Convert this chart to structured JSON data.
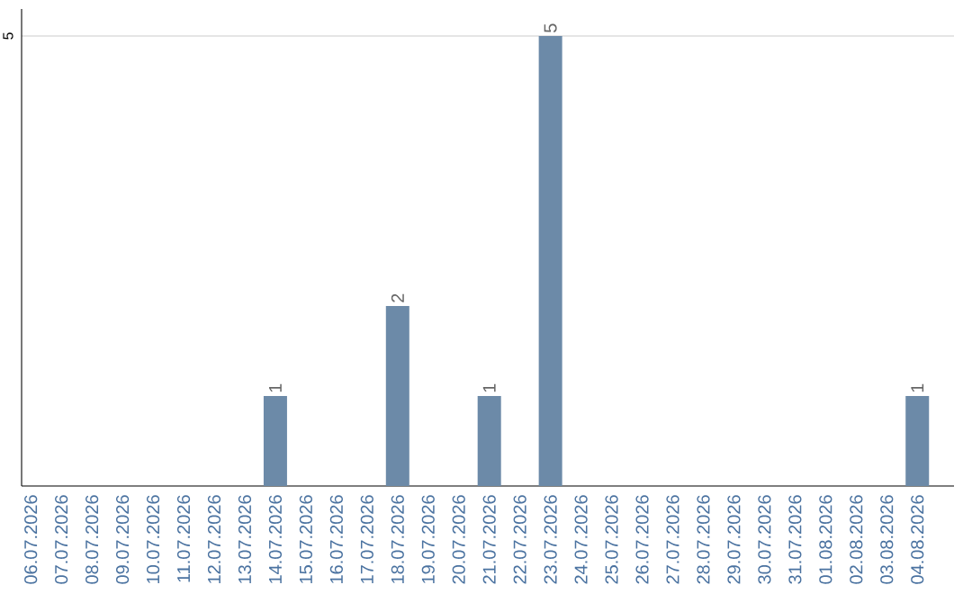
{
  "chart_data": {
    "type": "bar",
    "categories": [
      "06.07.2026",
      "07.07.2026",
      "08.07.2026",
      "09.07.2026",
      "10.07.2026",
      "11.07.2026",
      "12.07.2026",
      "13.07.2026",
      "14.07.2026",
      "15.07.2026",
      "16.07.2026",
      "17.07.2026",
      "18.07.2026",
      "19.07.2026",
      "20.07.2026",
      "21.07.2026",
      "22.07.2026",
      "23.07.2026",
      "24.07.2026",
      "25.07.2026",
      "26.07.2026",
      "27.07.2026",
      "28.07.2026",
      "29.07.2026",
      "30.07.2026",
      "31.07.2026",
      "01.08.2026",
      "02.08.2026",
      "03.08.2026",
      "04.08.2026"
    ],
    "values": [
      0,
      0,
      0,
      0,
      0,
      0,
      0,
      0,
      1,
      0,
      0,
      0,
      2,
      0,
      0,
      1,
      0,
      5,
      0,
      0,
      0,
      0,
      0,
      0,
      0,
      0,
      0,
      0,
      0,
      1
    ],
    "value_labels": [
      null,
      null,
      null,
      null,
      null,
      null,
      null,
      null,
      "1",
      null,
      null,
      null,
      "2",
      null,
      null,
      "1",
      null,
      "5",
      null,
      null,
      null,
      null,
      null,
      null,
      null,
      null,
      null,
      null,
      null,
      "1"
    ],
    "color": "#6c8aa8",
    "ylim": [
      0,
      5.3
    ],
    "yticks": [
      5
    ],
    "grid": "y"
  }
}
